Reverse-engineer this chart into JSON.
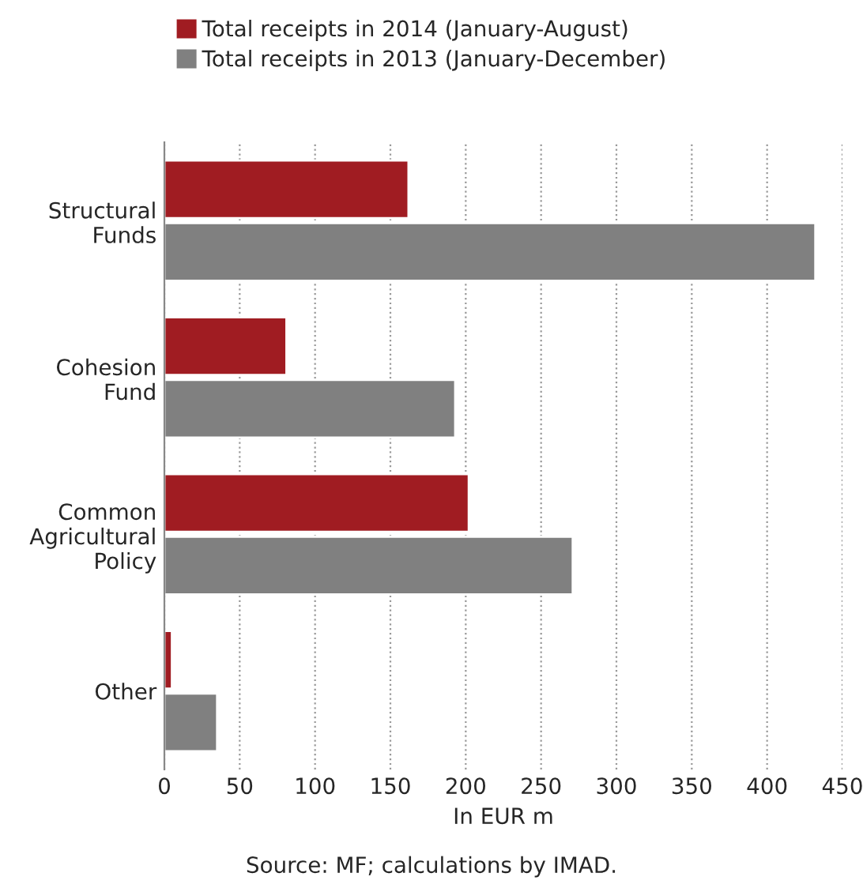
{
  "chart_data": {
    "type": "bar",
    "orientation": "horizontal",
    "categories": [
      "Structural\nFunds",
      "Cohesion\nFund",
      "Common\nAgricultural\nPolicy",
      "Other"
    ],
    "series": [
      {
        "name": "Total receipts in 2014 (January-August)",
        "color": "#a01c22",
        "values": [
          162,
          81,
          202,
          5
        ]
      },
      {
        "name": "Total receipts in 2013 (January-December)",
        "color": "#808080",
        "values": [
          432,
          193,
          271,
          35
        ]
      }
    ],
    "xlim": [
      0,
      450
    ],
    "xticks": [
      0,
      50,
      100,
      150,
      200,
      250,
      300,
      350,
      400,
      450
    ],
    "xlabel": "In EUR m",
    "annotations": [
      "Source: MF; calculations by IMAD."
    ],
    "grid": "x",
    "legend": "top"
  }
}
